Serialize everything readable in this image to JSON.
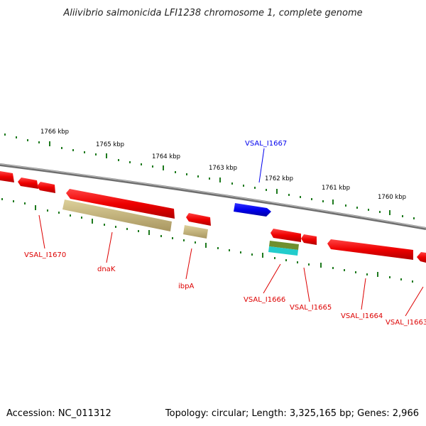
{
  "title": "Aliivibrio salmonicida LFI1238 chromosome 1, complete genome",
  "footer": {
    "accession": "Accession: NC_011312",
    "summary": "Topology: circular; Length: 3,325,165 bp; Genes: 2,966"
  },
  "ruler": {
    "ticks": [
      "1766 kbp",
      "1765 kbp",
      "1764 kbp",
      "1763 kbp",
      "1762 kbp",
      "1761 kbp",
      "1760 kbp"
    ]
  },
  "genes": [
    {
      "label": "VSAL_I1667",
      "color": "#0000ee"
    },
    {
      "label": "VSAL_I1670",
      "color": "#dd0000"
    },
    {
      "label": "dnaK",
      "color": "#dd0000"
    },
    {
      "label": "ibpA",
      "color": "#dd0000"
    },
    {
      "label": "VSAL_I1666",
      "color": "#dd0000"
    },
    {
      "label": "VSAL_I1665",
      "color": "#dd0000"
    },
    {
      "label": "VSAL_I1664",
      "color": "#dd0000"
    },
    {
      "label": "VSAL_I1663",
      "color": "#dd0000"
    }
  ],
  "colors": {
    "backbone": "#8a8a8a",
    "forward_gene": "#1a1aee",
    "reverse_gene": "#ee1111",
    "feature_olive": "#c8b87a",
    "feature_green": "#6f8f2f",
    "feature_cyan": "#22cccc",
    "ruler_tick": "#1e7a1e"
  }
}
